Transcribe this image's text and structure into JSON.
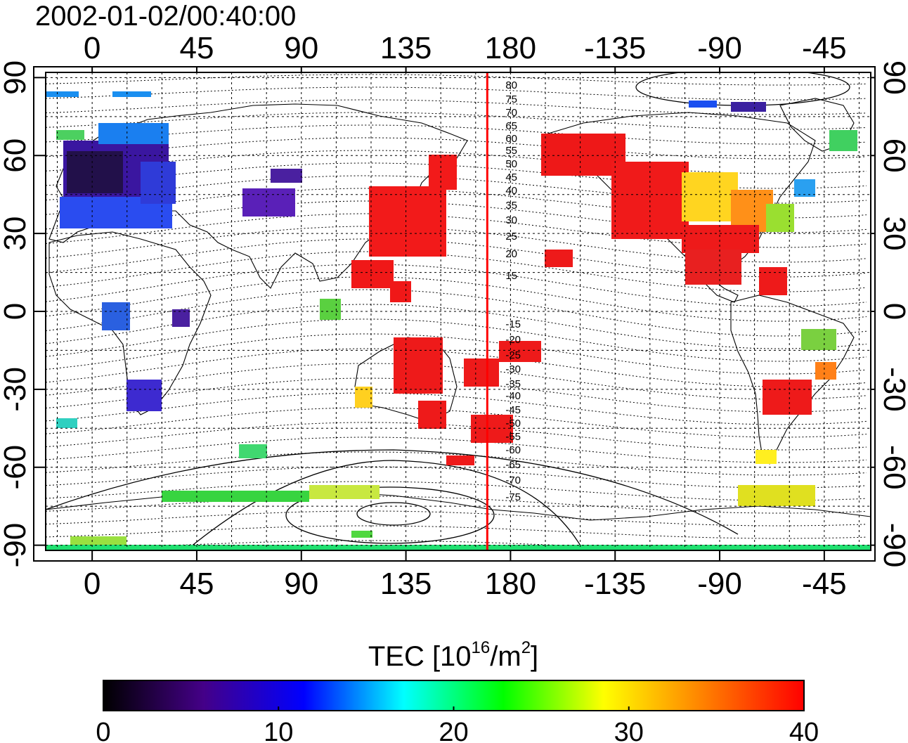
{
  "title": "2002-01-02/00:40:00",
  "map": {
    "lon_ticks": [
      0,
      45,
      90,
      135,
      180,
      -135,
      -90,
      -45
    ],
    "lat_ticks": [
      90,
      60,
      30,
      0,
      -30,
      -60,
      -90
    ],
    "lon_range": [
      -20,
      335
    ],
    "lat_range": [
      -92,
      92
    ],
    "grid": true,
    "meridian_line_lon": 170,
    "meridian_line_color": "#ff0000",
    "mag_lat_labels_north": [
      "80",
      "75",
      "70",
      "65",
      "60",
      "55",
      "50",
      "45",
      "40",
      "35",
      "30",
      "25",
      "20",
      "15"
    ],
    "mag_lat_labels_south": [
      "-15",
      "-20",
      "-25",
      "-30",
      "-35",
      "-40",
      "-45",
      "-50",
      "-55",
      "-60",
      "-65",
      "-70",
      "-75"
    ]
  },
  "colorbar": {
    "label_prefix": "TEC  [10",
    "label_sup1": "16",
    "label_mid": "/m",
    "label_sup2": "2",
    "label_suffix": "]",
    "ticks": [
      0,
      10,
      20,
      30,
      40
    ],
    "min": 0,
    "max": 40,
    "colors": [
      "#000000",
      "#440088",
      "#0000ff",
      "#00ffff",
      "#00ff00",
      "#ffff00",
      "#ff8000",
      "#ff0000"
    ]
  }
}
